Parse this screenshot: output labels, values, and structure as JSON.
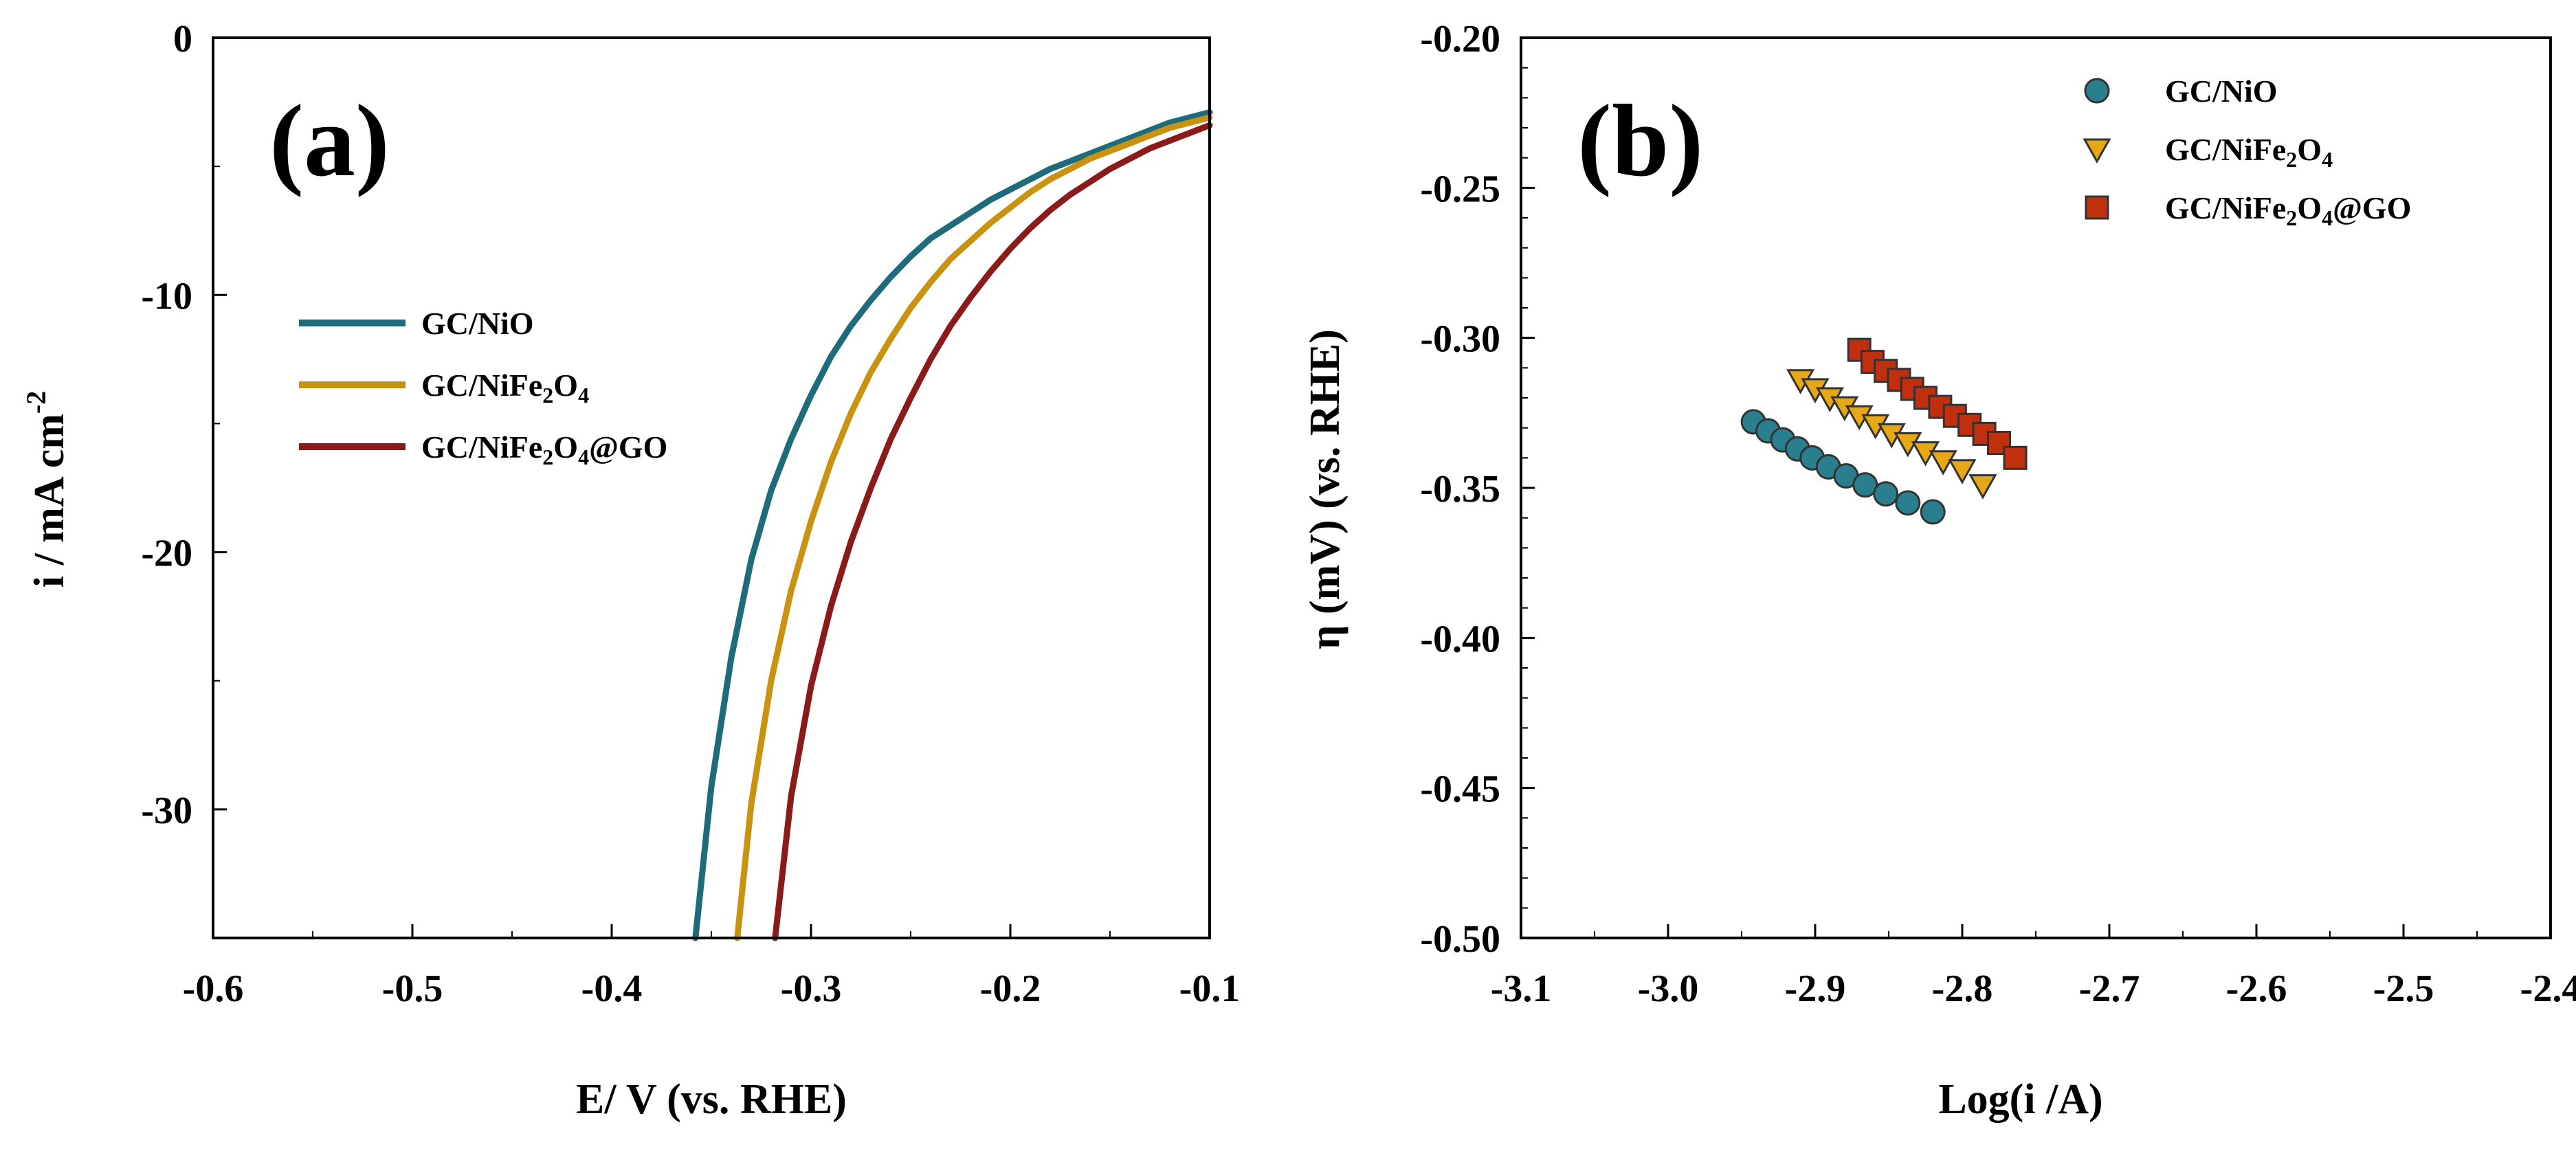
{
  "chart_data": [
    {
      "type": "line",
      "panel_label": "(a)",
      "xlabel": "E/ V (vs. RHE)",
      "ylabel": "i / mA cm",
      "ylabel_sup": "-2",
      "xlim": [
        -0.6,
        -0.1
      ],
      "ylim": [
        -35,
        0
      ],
      "x_ticks": [
        -0.6,
        -0.5,
        -0.4,
        -0.3,
        -0.2,
        -0.1
      ],
      "x_tick_labels": [
        "-0.6",
        "-0.5",
        "-0.4",
        "-0.3",
        "-0.2",
        "-0.1"
      ],
      "y_ticks": [
        0,
        -10,
        -20,
        -30
      ],
      "y_tick_labels": [
        "0",
        "-10",
        "-20",
        "-30"
      ],
      "grid": false,
      "legend": "center-left",
      "series": [
        {
          "name": "GC/NiO",
          "label_parts": [
            {
              "t": "GC/NiO"
            }
          ],
          "color": "#1e6b7b",
          "x": [
            -0.358,
            -0.35,
            -0.34,
            -0.33,
            -0.32,
            -0.31,
            -0.3,
            -0.29,
            -0.28,
            -0.27,
            -0.26,
            -0.25,
            -0.24,
            -0.23,
            -0.22,
            -0.21,
            -0.2,
            -0.19,
            -0.18,
            -0.17,
            -0.16,
            -0.15,
            -0.14,
            -0.13,
            -0.12,
            -0.11,
            -0.1
          ],
          "y": [
            -35.0,
            -29.1,
            -24.1,
            -20.3,
            -17.6,
            -15.6,
            -13.9,
            -12.4,
            -11.2,
            -10.2,
            -9.3,
            -8.5,
            -7.8,
            -7.3,
            -6.8,
            -6.3,
            -5.9,
            -5.5,
            -5.1,
            -4.8,
            -4.5,
            -4.2,
            -3.9,
            -3.6,
            -3.3,
            -3.1,
            -2.9
          ]
        },
        {
          "name": "GC/NiFe2O4",
          "label_parts": [
            {
              "t": "GC/NiFe"
            },
            {
              "t": "2",
              "sub": true
            },
            {
              "t": "O"
            },
            {
              "t": "4",
              "sub": true
            }
          ],
          "color": "#c9920f",
          "x": [
            -0.337,
            -0.33,
            -0.32,
            -0.31,
            -0.3,
            -0.29,
            -0.28,
            -0.27,
            -0.26,
            -0.25,
            -0.24,
            -0.23,
            -0.22,
            -0.21,
            -0.2,
            -0.19,
            -0.18,
            -0.17,
            -0.16,
            -0.15,
            -0.14,
            -0.13,
            -0.12,
            -0.11,
            -0.1
          ],
          "y": [
            -35.0,
            -29.8,
            -25.0,
            -21.5,
            -18.8,
            -16.5,
            -14.6,
            -13.0,
            -11.7,
            -10.5,
            -9.5,
            -8.6,
            -7.9,
            -7.2,
            -6.6,
            -6.0,
            -5.5,
            -5.1,
            -4.7,
            -4.4,
            -4.1,
            -3.8,
            -3.5,
            -3.3,
            -3.1
          ]
        },
        {
          "name": "GC/NiFe2O4@GO",
          "label_parts": [
            {
              "t": "GC/NiFe"
            },
            {
              "t": "2",
              "sub": true
            },
            {
              "t": "O"
            },
            {
              "t": "4",
              "sub": true
            },
            {
              "t": "@GO"
            }
          ],
          "color": "#8b1a1a",
          "x": [
            -0.318,
            -0.31,
            -0.3,
            -0.29,
            -0.28,
            -0.27,
            -0.26,
            -0.25,
            -0.24,
            -0.23,
            -0.22,
            -0.21,
            -0.2,
            -0.19,
            -0.18,
            -0.17,
            -0.16,
            -0.15,
            -0.14,
            -0.13,
            -0.12,
            -0.11,
            -0.1
          ],
          "y": [
            -35.0,
            -29.5,
            -25.2,
            -22.1,
            -19.6,
            -17.5,
            -15.6,
            -14.0,
            -12.5,
            -11.2,
            -10.1,
            -9.1,
            -8.2,
            -7.4,
            -6.7,
            -6.1,
            -5.6,
            -5.1,
            -4.7,
            -4.3,
            -4.0,
            -3.7,
            -3.4
          ]
        }
      ]
    },
    {
      "type": "scatter",
      "panel_label": "(b)",
      "xlabel": "Log(i /A)",
      "ylabel": "η (mV) (vs. RHE)",
      "xlim": [
        -3.1,
        -2.4
      ],
      "ylim": [
        -0.5,
        -0.2
      ],
      "x_ticks": [
        -3.1,
        -3.0,
        -2.9,
        -2.8,
        -2.7,
        -2.6,
        -2.5,
        -2.4
      ],
      "x_tick_labels": [
        "-3.1",
        "-3.0",
        "-2.9",
        "-2.8",
        "-2.7",
        "-2.6",
        "-2.5",
        "-2.4"
      ],
      "y_ticks": [
        -0.2,
        -0.25,
        -0.3,
        -0.35,
        -0.4,
        -0.45,
        -0.5
      ],
      "y_tick_labels": [
        "-0.20",
        "-0.25",
        "-0.30",
        "-0.35",
        "-0.40",
        "-0.45",
        "-0.50"
      ],
      "grid": false,
      "legend": "top-right",
      "series": [
        {
          "name": "GC/NiO",
          "label_parts": [
            {
              "t": "GC/NiO"
            }
          ],
          "marker": "circle",
          "color": "#2a7f8f",
          "x": [
            -2.942,
            -2.932,
            -2.922,
            -2.912,
            -2.902,
            -2.891,
            -2.879,
            -2.866,
            -2.852,
            -2.837,
            -2.82
          ],
          "y": [
            -0.328,
            -0.331,
            -0.334,
            -0.337,
            -0.34,
            -0.343,
            -0.346,
            -0.349,
            -0.352,
            -0.355,
            -0.358
          ]
        },
        {
          "name": "GC/NiFe2O4",
          "label_parts": [
            {
              "t": "GC/NiFe"
            },
            {
              "t": "2",
              "sub": true
            },
            {
              "t": "O"
            },
            {
              "t": "4",
              "sub": true
            }
          ],
          "marker": "triangle-down",
          "color": "#e6a817",
          "x": [
            -2.91,
            -2.9,
            -2.89,
            -2.88,
            -2.87,
            -2.859,
            -2.848,
            -2.837,
            -2.825,
            -2.813,
            -2.8,
            -2.786
          ],
          "y": [
            -0.314,
            -0.317,
            -0.32,
            -0.323,
            -0.326,
            -0.329,
            -0.332,
            -0.335,
            -0.338,
            -0.341,
            -0.344,
            -0.349
          ]
        },
        {
          "name": "GC/NiFe2O4@GO",
          "label_parts": [
            {
              "t": "GC/NiFe"
            },
            {
              "t": "2",
              "sub": true
            },
            {
              "t": "O"
            },
            {
              "t": "4",
              "sub": true
            },
            {
              "t": "@GO"
            }
          ],
          "marker": "square",
          "color": "#c0300f",
          "x": [
            -2.87,
            -2.861,
            -2.852,
            -2.843,
            -2.834,
            -2.825,
            -2.815,
            -2.805,
            -2.795,
            -2.785,
            -2.775,
            -2.764
          ],
          "y": [
            -0.304,
            -0.308,
            -0.311,
            -0.314,
            -0.317,
            -0.32,
            -0.323,
            -0.326,
            -0.329,
            -0.332,
            -0.335,
            -0.34
          ]
        }
      ]
    }
  ]
}
